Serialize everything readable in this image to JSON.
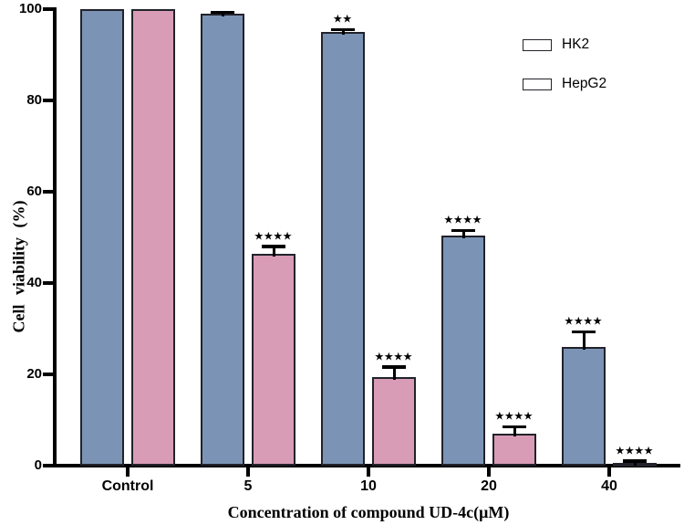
{
  "chart_data": {
    "type": "bar",
    "title": "",
    "xlabel": "Concentration of compound UD-4c(μM)",
    "ylabel": "Cell viability (%)",
    "ylim": [
      0,
      100
    ],
    "yticks": [
      0,
      20,
      40,
      60,
      80,
      100
    ],
    "categories": [
      "Control",
      "5",
      "10",
      "20",
      "40"
    ],
    "series": [
      {
        "name": "HK2",
        "color": "#7B94B5",
        "values": [
          100,
          99,
          95,
          50.5,
          26
        ],
        "errors": [
          0,
          0.4,
          0.6,
          1.1,
          3.4
        ],
        "significance": [
          "",
          "",
          "**",
          "****",
          "****"
        ]
      },
      {
        "name": "HepG2",
        "color": "#D89CB6",
        "values": [
          100,
          46.5,
          19.5,
          7,
          0.7
        ],
        "errors": [
          0,
          1.6,
          2.2,
          1.6,
          0.4
        ],
        "significance": [
          "",
          "****",
          "****",
          "****",
          "****"
        ]
      }
    ],
    "grid": false,
    "legend_position": "top-right",
    "significance_glyph": "★"
  },
  "colors": {
    "axis": "#000000",
    "bar_border": "#22222b",
    "error_bar": "#000000",
    "background": "#ffffff"
  }
}
